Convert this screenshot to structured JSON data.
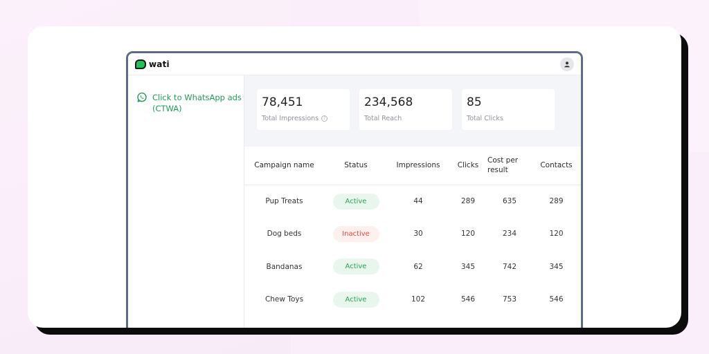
{
  "app": {
    "logo_text": "wati"
  },
  "sidebar": {
    "items": [
      {
        "label": "Click to WhatsApp ads (CTWA)",
        "icon": "whatsapp-icon"
      }
    ]
  },
  "stats": [
    {
      "value": "78,451",
      "label": "Total Impressions",
      "has_info": true
    },
    {
      "value": "234,568",
      "label": "Total Reach"
    },
    {
      "value": "85",
      "label": "Total Clicks"
    }
  ],
  "table": {
    "headers": {
      "campaign": "Campaign name",
      "status": "Status",
      "impressions": "Impressions",
      "clicks": "Clicks",
      "cost": "Cost per result",
      "contacts": "Contacts"
    },
    "rows": [
      {
        "name": "Pup Treats",
        "status": "Active",
        "impressions": "44",
        "clicks": "289",
        "cost": "635",
        "contacts": "289"
      },
      {
        "name": "Dog beds",
        "status": "Inactive",
        "impressions": "30",
        "clicks": "120",
        "cost": "234",
        "contacts": "120"
      },
      {
        "name": "Bandanas",
        "status": "Active",
        "impressions": "62",
        "clicks": "345",
        "cost": "742",
        "contacts": "345"
      },
      {
        "name": "Chew Toys",
        "status": "Active",
        "impressions": "102",
        "clicks": "546",
        "cost": "753",
        "contacts": "546"
      }
    ]
  },
  "colors": {
    "accent_green": "#1f9d55",
    "active_bg": "#e8f6ee",
    "inactive_text": "#e0483d",
    "window_border": "#5d6b8a"
  }
}
